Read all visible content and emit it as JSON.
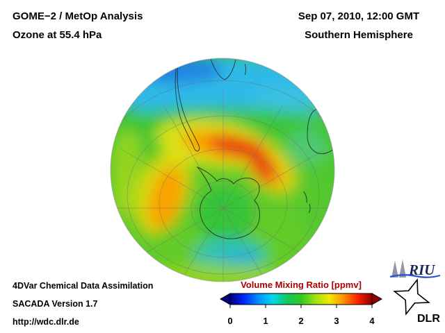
{
  "header": {
    "product": "GOME−2 / MetOp Analysis",
    "level": "Ozone at 55.4 hPa",
    "datetime": "Sep 07, 2010, 12:00 GMT",
    "hemisphere": "Southern Hemisphere"
  },
  "map": {
    "projection": "orthographic",
    "view": "Southern Hemisphere, South Pole",
    "field": "ozone volume mixing ratio",
    "units": "ppmv",
    "value_min": 0,
    "value_max": 4
  },
  "colorbar": {
    "title": "Volume Mixing Ratio [ppmv]",
    "title_color": "#aa0000",
    "ticks": [
      "0",
      "1",
      "2",
      "3",
      "4"
    ],
    "colors": [
      "#000080",
      "#0028ff",
      "#0090ff",
      "#00d8e8",
      "#10c860",
      "#30c820",
      "#a0e010",
      "#f0e800",
      "#ff9000",
      "#ff2000",
      "#900000"
    ]
  },
  "footer": {
    "line1": "4DVar Chemical Data Assimilation",
    "line2": "SACADA Version 1.7",
    "url": "http://wdc.dlr.de"
  },
  "logos": {
    "riu_text": "RIU",
    "dlr_text": "DLR"
  }
}
